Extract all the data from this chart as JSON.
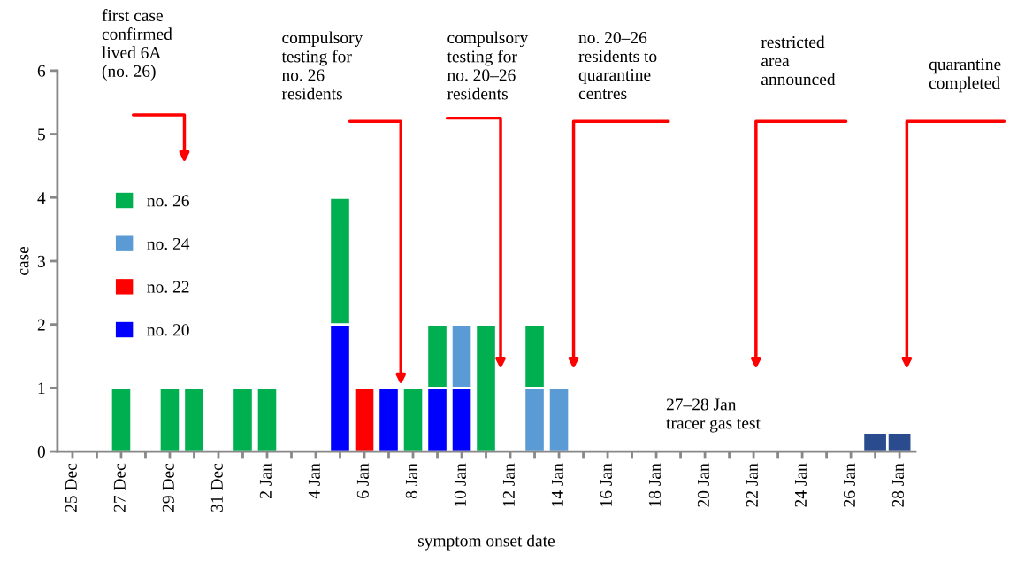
{
  "chart_data": {
    "type": "bar",
    "stacked": true,
    "xlabel": "symptom onset date",
    "ylabel": "case",
    "categories": [
      "25 Dec",
      null,
      "27 Dec",
      null,
      "29 Dec",
      null,
      "31 Dec",
      null,
      "2 Jan",
      null,
      "4 Jan",
      null,
      "6 Jan",
      null,
      "8 Jan",
      null,
      "10 Jan",
      null,
      "12 Jan",
      null,
      "14 Jan",
      null,
      "16 Jan",
      null,
      "18 Jan",
      null,
      "20 Jan",
      null,
      "22 Jan",
      null,
      "24 Jan",
      null,
      "26 Jan",
      null,
      "28 Jan"
    ],
    "series": [
      {
        "name": "no. 20",
        "color": "#0000ff",
        "values": [
          null,
          null,
          null,
          null,
          null,
          null,
          null,
          null,
          null,
          null,
          null,
          2,
          null,
          1,
          null,
          1,
          1,
          null,
          null,
          null,
          null,
          null,
          null,
          null,
          null,
          null,
          null,
          null,
          null,
          null,
          null,
          null,
          null,
          null,
          null
        ]
      },
      {
        "name": "no. 22",
        "color": "#ff0000",
        "values": [
          null,
          null,
          null,
          null,
          null,
          null,
          null,
          null,
          null,
          null,
          null,
          null,
          1,
          null,
          null,
          null,
          null,
          null,
          null,
          null,
          null,
          null,
          null,
          null,
          null,
          null,
          null,
          null,
          null,
          null,
          null,
          null,
          null,
          null,
          null
        ]
      },
      {
        "name": "no. 24",
        "color": "#5b9bd5",
        "values": [
          null,
          null,
          null,
          null,
          null,
          null,
          null,
          null,
          null,
          null,
          null,
          null,
          null,
          null,
          null,
          null,
          1,
          null,
          null,
          1,
          1,
          null,
          null,
          null,
          null,
          null,
          null,
          null,
          null,
          null,
          null,
          null,
          null,
          null,
          null
        ]
      },
      {
        "name": "no. 26",
        "color": "#00b050",
        "values": [
          null,
          null,
          1,
          null,
          1,
          1,
          null,
          1,
          1,
          null,
          null,
          2,
          null,
          null,
          1,
          1,
          null,
          2,
          null,
          1,
          null,
          null,
          null,
          null,
          null,
          null,
          null,
          null,
          null,
          null,
          null,
          null,
          null,
          null,
          null
        ]
      },
      {
        "color": "#2a4b8d",
        "values": [
          null,
          null,
          null,
          null,
          null,
          null,
          null,
          null,
          null,
          null,
          null,
          null,
          null,
          null,
          null,
          null,
          null,
          null,
          null,
          null,
          null,
          null,
          null,
          null,
          null,
          null,
          null,
          null,
          null,
          null,
          null,
          null,
          null,
          0.3,
          0.3
        ]
      }
    ],
    "ylim": [
      0,
      6
    ],
    "yticks": [
      0,
      1,
      2,
      3,
      4,
      5,
      6
    ],
    "legend": "left",
    "annotations": [
      "first case\nconfirmed\nlived 6A\n(no. 26)",
      "compulsory\ntesting for\nno. 26\nresidents",
      "compulsory\ntesting for\nno. 20–26\nresidents",
      "no. 20–26\nresidents to\nquarantine\ncentres",
      "restricted\narea\nannounced",
      "quarantine\ncompleted",
      "27–28 Jan\ntracer gas test"
    ]
  }
}
